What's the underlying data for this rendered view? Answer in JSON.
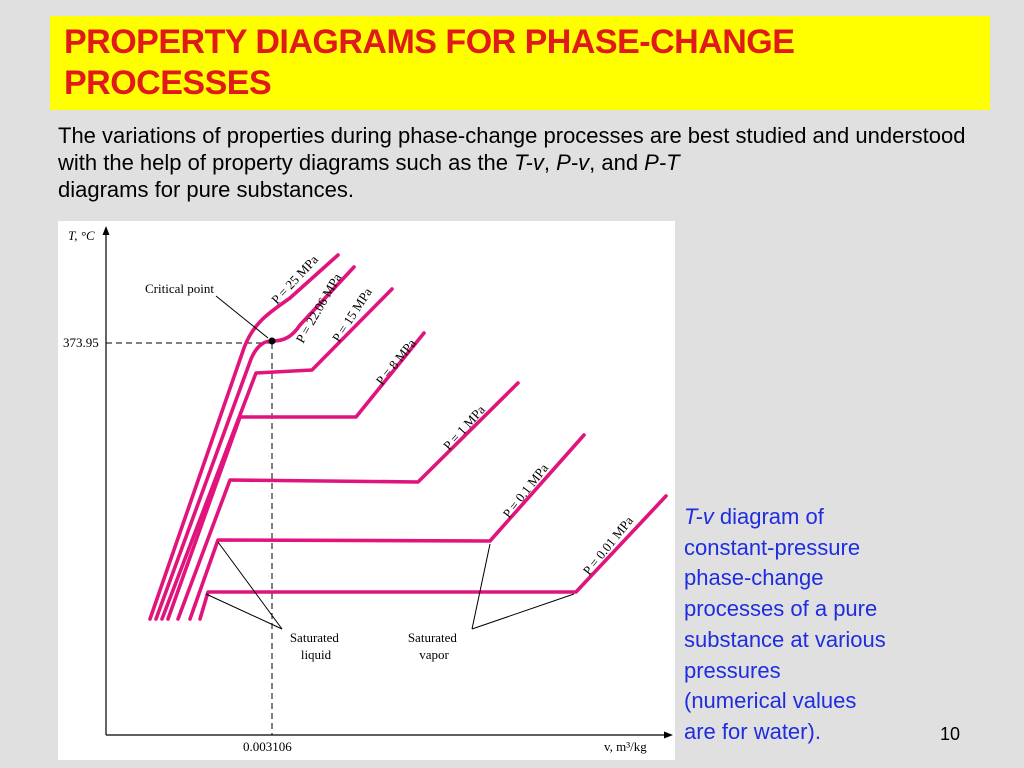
{
  "title": {
    "line1": "PROPERTY DIAGRAMS FOR PHASE-CHANGE",
    "line2": "PROCESSES"
  },
  "intro": {
    "part1": "The variations of properties during phase-change processes are best studied and understood with the help of property diagrams such as the ",
    "tv": "T-v",
    "sep1": ", ",
    "pv": "P-v",
    "sep2": ", and ",
    "pt": "P-T",
    "part2": " diagrams for pure substances."
  },
  "diagram": {
    "y_axis_label": "T, °C",
    "x_axis_label": "v, m³/kg",
    "critical_point_label": "Critical point",
    "critical_temperature": "373.95",
    "critical_volume": "0.003106",
    "saturated_liquid_label": [
      "Saturated",
      "liquid"
    ],
    "saturated_vapor_label": [
      "Saturated",
      "vapor"
    ],
    "isobar_labels": [
      "P = 25 MPa",
      "P = 22.06 MPa",
      "P = 15 MPa",
      "P = 8 MPa",
      "P = 1 MPa",
      "P = 0.1 MPa",
      "P = 0.01 MPa"
    ],
    "line_color": "#e0147c"
  },
  "caption": {
    "tv": "T-v",
    "rest1": " diagram of",
    "line2": "constant-pressure",
    "line3": "phase-change",
    "line4": "processes of a pure",
    "line5": "substance at various",
    "line6": "pressures",
    "line7": "(numerical values",
    "line8": "are for water)."
  },
  "page_number": "10"
}
